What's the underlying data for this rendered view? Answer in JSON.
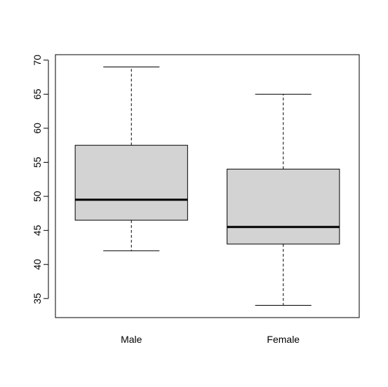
{
  "chart_data": {
    "type": "boxplot",
    "title": "",
    "xlabel": "",
    "ylabel": "",
    "ylim": [
      32.2,
      70.8
    ],
    "yticks": [
      35,
      40,
      45,
      50,
      55,
      60,
      65,
      70
    ],
    "ytick_labels": [
      "35",
      "40",
      "45",
      "50",
      "55",
      "60",
      "65",
      "70"
    ],
    "categories": [
      "Male",
      "Female"
    ],
    "boxes": [
      {
        "whisker_low": 42,
        "q1": 46.5,
        "median": 49.5,
        "q3": 57.5,
        "whisker_high": 69
      },
      {
        "whisker_low": 34,
        "q1": 43,
        "median": 45.5,
        "q3": 54,
        "whisker_high": 65
      }
    ],
    "box_fill": "#d3d3d3",
    "stroke_color": "#000000",
    "grid": false
  }
}
